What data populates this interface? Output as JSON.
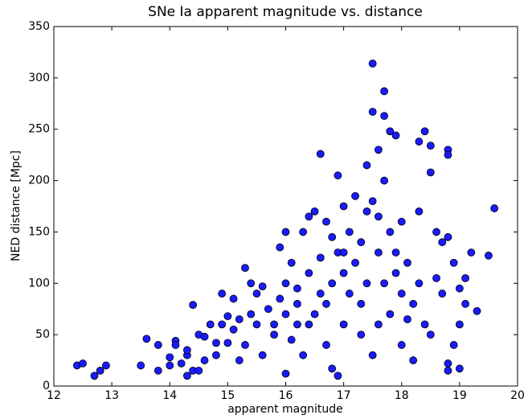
{
  "chart_data": {
    "type": "scatter",
    "title": "SNe Ia apparent magnitude vs. distance",
    "xlabel": "apparent magnitude",
    "ylabel": "NED distance [Mpc]",
    "color": "#1a1aff",
    "xlim": [
      12,
      20
    ],
    "xticks": [
      12,
      13,
      14,
      15,
      16,
      17,
      18,
      19,
      20
    ],
    "ylim": [
      0,
      350
    ],
    "yticks": [
      0,
      50,
      100,
      150,
      200,
      250,
      300,
      350
    ],
    "x": [
      12.4,
      12.5,
      12.7,
      12.8,
      12.9,
      13.5,
      13.6,
      13.8,
      13.8,
      14.0,
      14.0,
      14.1,
      14.1,
      14.2,
      14.3,
      14.3,
      14.3,
      14.4,
      14.4,
      14.5,
      14.5,
      14.6,
      14.6,
      14.7,
      14.8,
      14.8,
      14.9,
      14.9,
      15.0,
      15.0,
      15.1,
      15.1,
      15.2,
      15.2,
      15.3,
      15.3,
      15.4,
      15.5,
      15.5,
      15.6,
      15.6,
      15.7,
      15.8,
      15.8,
      15.9,
      15.9,
      16.0,
      16.0,
      16.0,
      16.1,
      16.1,
      16.2,
      16.2,
      16.3,
      16.3,
      16.4,
      16.4,
      16.4,
      16.5,
      16.5,
      16.6,
      16.6,
      16.6,
      16.7,
      16.7,
      16.8,
      16.8,
      16.8,
      16.9,
      16.9,
      16.9,
      17.0,
      17.0,
      17.0,
      17.1,
      17.1,
      17.2,
      17.2,
      17.3,
      17.3,
      17.4,
      17.4,
      17.4,
      17.5,
      17.5,
      17.5,
      17.5,
      17.6,
      17.6,
      17.6,
      17.7,
      17.7,
      17.7,
      17.7,
      17.8,
      17.8,
      17.8,
      17.9,
      17.9,
      18.0,
      18.0,
      18.0,
      18.1,
      18.2,
      18.2,
      18.3,
      18.3,
      18.3,
      18.4,
      18.4,
      18.5,
      18.5,
      18.5,
      18.6,
      18.6,
      18.7,
      18.7,
      18.8,
      18.8,
      18.8,
      18.8,
      18.8,
      18.9,
      18.9,
      19.0,
      19.0,
      19.0,
      19.1,
      19.2,
      19.3,
      19.5,
      19.6,
      19.1,
      16.2,
      16.7,
      17.3,
      18.1,
      15.4,
      17.9,
      16.0,
      17.0,
      17.6
    ],
    "values": [
      20,
      22,
      10,
      15,
      20,
      20,
      46,
      15,
      40,
      20,
      28,
      44,
      40,
      22,
      10,
      30,
      35,
      15,
      79,
      15,
      50,
      48,
      25,
      60,
      42,
      30,
      60,
      90,
      68,
      42,
      55,
      85,
      65,
      25,
      115,
      40,
      70,
      90,
      60,
      97,
      30,
      75,
      50,
      60,
      135,
      85,
      12,
      100,
      70,
      120,
      45,
      95,
      80,
      150,
      30,
      165,
      110,
      60,
      170,
      70,
      226,
      125,
      90,
      160,
      40,
      145,
      100,
      17,
      205,
      130,
      10,
      175,
      110,
      60,
      150,
      90,
      185,
      120,
      140,
      80,
      215,
      170,
      100,
      314,
      267,
      180,
      30,
      230,
      130,
      60,
      287,
      263,
      200,
      100,
      248,
      150,
      70,
      244,
      110,
      160,
      90,
      40,
      120,
      80,
      25,
      238,
      170,
      100,
      248,
      60,
      234,
      208,
      50,
      150,
      105,
      140,
      90,
      230,
      225,
      145,
      22,
      15,
      120,
      40,
      95,
      60,
      17,
      105,
      130,
      73,
      127,
      173,
      80,
      60,
      80,
      50,
      65,
      100,
      130,
      150,
      130,
      165
    ]
  }
}
